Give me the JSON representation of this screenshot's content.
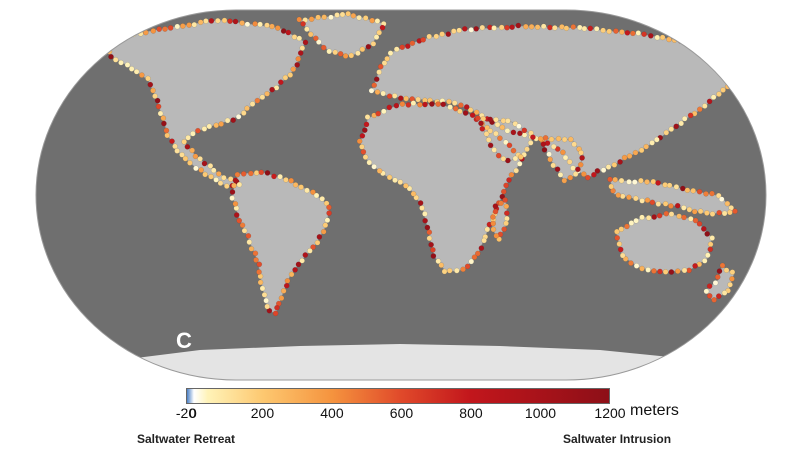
{
  "map": {
    "panel_letter": "C",
    "colors": {
      "ocean": "#6f6f6f",
      "land": "#b9b9b9",
      "ice": "#e4e4e4",
      "border": "#8a8a8a"
    }
  },
  "legend": {
    "ticks": [
      "-20",
      "0",
      "200",
      "400",
      "600",
      "800",
      "1000",
      "1200"
    ],
    "tick_values": [
      -20,
      0,
      200,
      400,
      600,
      800,
      1000,
      1200
    ],
    "range": [
      -20,
      1200
    ],
    "unit": "meters",
    "left_label": "Saltwater Retreat",
    "right_label": "Saltwater Intrusion",
    "color_stops": [
      {
        "value": -20,
        "color": "#4a7fc4"
      },
      {
        "value": 0,
        "color": "#ffffff"
      },
      {
        "value": 40,
        "color": "#fff3b8"
      },
      {
        "value": 200,
        "color": "#fdc870"
      },
      {
        "value": 400,
        "color": "#f5933e"
      },
      {
        "value": 600,
        "color": "#e0492a"
      },
      {
        "value": 800,
        "color": "#c2161c"
      },
      {
        "value": 1200,
        "color": "#8d0f17"
      }
    ]
  }
}
